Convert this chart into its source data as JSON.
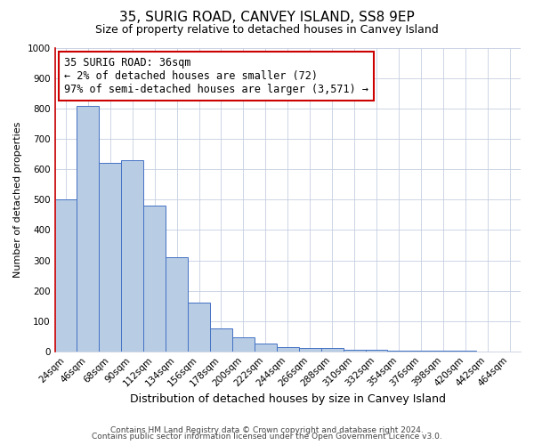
{
  "title": "35, SURIG ROAD, CANVEY ISLAND, SS8 9EP",
  "subtitle": "Size of property relative to detached houses in Canvey Island",
  "xlabel": "Distribution of detached houses by size in Canvey Island",
  "ylabel": "Number of detached properties",
  "bar_labels": [
    "24sqm",
    "46sqm",
    "68sqm",
    "90sqm",
    "112sqm",
    "134sqm",
    "156sqm",
    "178sqm",
    "200sqm",
    "222sqm",
    "244sqm",
    "266sqm",
    "288sqm",
    "310sqm",
    "332sqm",
    "354sqm",
    "376sqm",
    "398sqm",
    "420sqm",
    "442sqm",
    "464sqm"
  ],
  "bar_values": [
    500,
    810,
    620,
    630,
    480,
    310,
    160,
    75,
    47,
    25,
    15,
    10,
    10,
    5,
    5,
    2,
    2,
    1,
    1,
    0,
    0
  ],
  "bar_color": "#b8cce4",
  "bar_edge_color": "#4472c4",
  "annotation_line1": "35 SURIG ROAD: 36sqm",
  "annotation_line2": "← 2% of detached houses are smaller (72)",
  "annotation_line3": "97% of semi-detached houses are larger (3,571) →",
  "annotation_box_color": "#ffffff",
  "annotation_box_edge_color": "#cc0000",
  "ylim": [
    0,
    1000
  ],
  "yticks": [
    0,
    100,
    200,
    300,
    400,
    500,
    600,
    700,
    800,
    900,
    1000
  ],
  "footer_line1": "Contains HM Land Registry data © Crown copyright and database right 2024.",
  "footer_line2": "Contains public sector information licensed under the Open Government Licence v3.0.",
  "background_color": "#ffffff",
  "grid_color": "#c5cfe0",
  "title_fontsize": 11,
  "subtitle_fontsize": 9,
  "xlabel_fontsize": 9,
  "ylabel_fontsize": 8,
  "tick_fontsize": 7.5,
  "annotation_fontsize": 8.5,
  "footer_fontsize": 6.5
}
